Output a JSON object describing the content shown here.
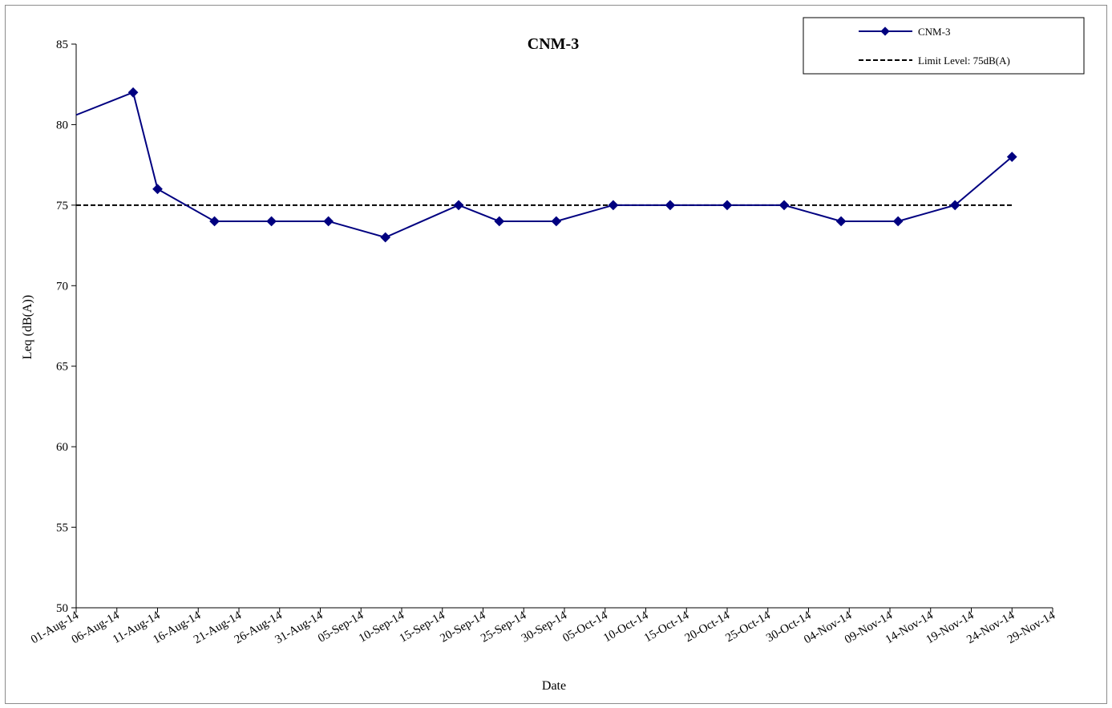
{
  "chart_data": {
    "type": "line",
    "title": "CNM-3",
    "xlabel": "Date",
    "ylabel": "Leq (dB(A))",
    "ylim": [
      50,
      85
    ],
    "yticks": [
      50,
      55,
      60,
      65,
      70,
      75,
      80,
      85
    ],
    "xlim": [
      "2014-08-01",
      "2014-11-29"
    ],
    "xticks": [
      "01-Aug-14",
      "06-Aug-14",
      "11-Aug-14",
      "16-Aug-14",
      "21-Aug-14",
      "26-Aug-14",
      "31-Aug-14",
      "05-Sep-14",
      "10-Sep-14",
      "15-Sep-14",
      "20-Sep-14",
      "25-Sep-14",
      "30-Sep-14",
      "05-Oct-14",
      "10-Oct-14",
      "15-Oct-14",
      "20-Oct-14",
      "25-Oct-14",
      "30-Oct-14",
      "04-Nov-14",
      "09-Nov-14",
      "14-Nov-14",
      "19-Nov-14",
      "24-Nov-14",
      "29-Nov-14"
    ],
    "legend_position": "top-right",
    "grid": false,
    "series": [
      {
        "name": "CNM-3",
        "color": "#000080",
        "marker": "diamond",
        "points": [
          {
            "x": "2014-08-08",
            "y": 82
          },
          {
            "x": "2014-08-11",
            "y": 76
          },
          {
            "x": "2014-08-18",
            "y": 74
          },
          {
            "x": "2014-08-25",
            "y": 74
          },
          {
            "x": "2014-09-01",
            "y": 74
          },
          {
            "x": "2014-09-08",
            "y": 73
          },
          {
            "x": "2014-09-17",
            "y": 75
          },
          {
            "x": "2014-09-22",
            "y": 74
          },
          {
            "x": "2014-09-29",
            "y": 74
          },
          {
            "x": "2014-10-06",
            "y": 75
          },
          {
            "x": "2014-10-13",
            "y": 75
          },
          {
            "x": "2014-10-20",
            "y": 75
          },
          {
            "x": "2014-10-27",
            "y": 75
          },
          {
            "x": "2014-11-03",
            "y": 74
          },
          {
            "x": "2014-11-10",
            "y": 74
          },
          {
            "x": "2014-11-17",
            "y": 75
          },
          {
            "x": "2014-11-24",
            "y": 78
          }
        ],
        "leading_segment": {
          "x": "2014-08-01",
          "y": 80.6
        }
      },
      {
        "name": "Limit Level: 75dB(A)",
        "color": "#000000",
        "style": "dashed",
        "constant": 75,
        "x_range": [
          "2014-08-01",
          "2014-11-24"
        ]
      }
    ]
  }
}
